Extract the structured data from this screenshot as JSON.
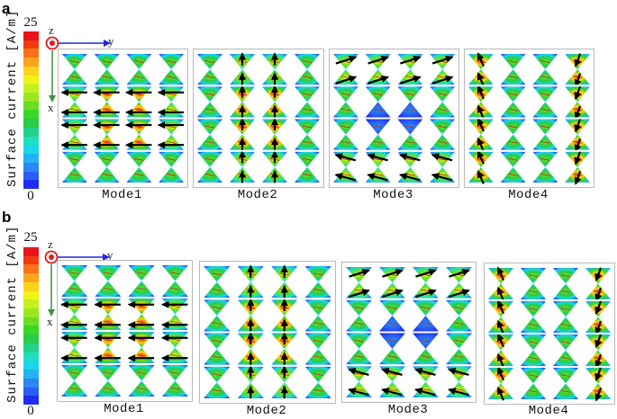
{
  "figure": {
    "parts": [
      {
        "letter": "a",
        "colorbar": {
          "max": "25",
          "min": "0",
          "label": "Surface current [A/m]"
        },
        "axes": {
          "z": "z",
          "y": "y",
          "x": "x"
        },
        "modes": [
          {
            "label": "Mode1",
            "arrow_pattern": "left-rows-2-5"
          },
          {
            "label": "Mode2",
            "arrow_pattern": "up-cols-2-3"
          },
          {
            "label": "Mode3",
            "arrow_pattern": "right-top-left-bottom"
          },
          {
            "label": "Mode4",
            "arrow_pattern": "up-col1-down-col4"
          }
        ]
      },
      {
        "letter": "b",
        "colorbar": {
          "max": "25",
          "min": "0",
          "label": "Surface current [A/m]"
        },
        "axes": {
          "z": "z",
          "y": "y",
          "x": "x"
        },
        "modes": [
          {
            "label": "Mode1",
            "arrow_pattern": "left-rows-2-5"
          },
          {
            "label": "Mode2",
            "arrow_pattern": "up-cols-2-3"
          },
          {
            "label": "Mode3",
            "arrow_pattern": "right-top-left-bottom"
          },
          {
            "label": "Mode4",
            "arrow_pattern": "up-col1-down-col4"
          }
        ]
      }
    ],
    "colormap": [
      "#e8141b",
      "#f23a12",
      "#f8721a",
      "#fca41e",
      "#fdd21b",
      "#f2f21a",
      "#c6ef1f",
      "#98e820",
      "#6ade22",
      "#3bd624",
      "#28cc4a",
      "#22d28a",
      "#1ee0c0",
      "#19d6e8",
      "#22b2f2",
      "#2a88f0",
      "#2a5ef0",
      "#1e2ef0"
    ],
    "colors": {
      "axis_y": "#2424e6",
      "axis_x": "#3f8f3f",
      "axis_z": "#e01818",
      "panel_border": "#b9b9b9"
    }
  }
}
